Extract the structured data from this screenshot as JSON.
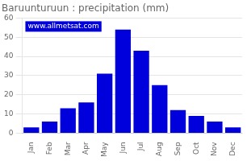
{
  "chart_data": {
    "type": "bar",
    "title": "Baruunturuun : precipitation (mm)",
    "categories": [
      "Jan",
      "Feb",
      "Mar",
      "Apr",
      "May",
      "Jun",
      "Jul",
      "Aug",
      "Sep",
      "Oct",
      "Nov",
      "Dec"
    ],
    "values": [
      3,
      6,
      13,
      16,
      31,
      54,
      43,
      25,
      12,
      9,
      6,
      3
    ],
    "color": "#0000dd",
    "ylim": [
      0,
      60
    ],
    "yticks": [
      0,
      10,
      20,
      30,
      40,
      50,
      60
    ],
    "grid": true,
    "annotations": [
      "www.allmetsat.com"
    ]
  }
}
